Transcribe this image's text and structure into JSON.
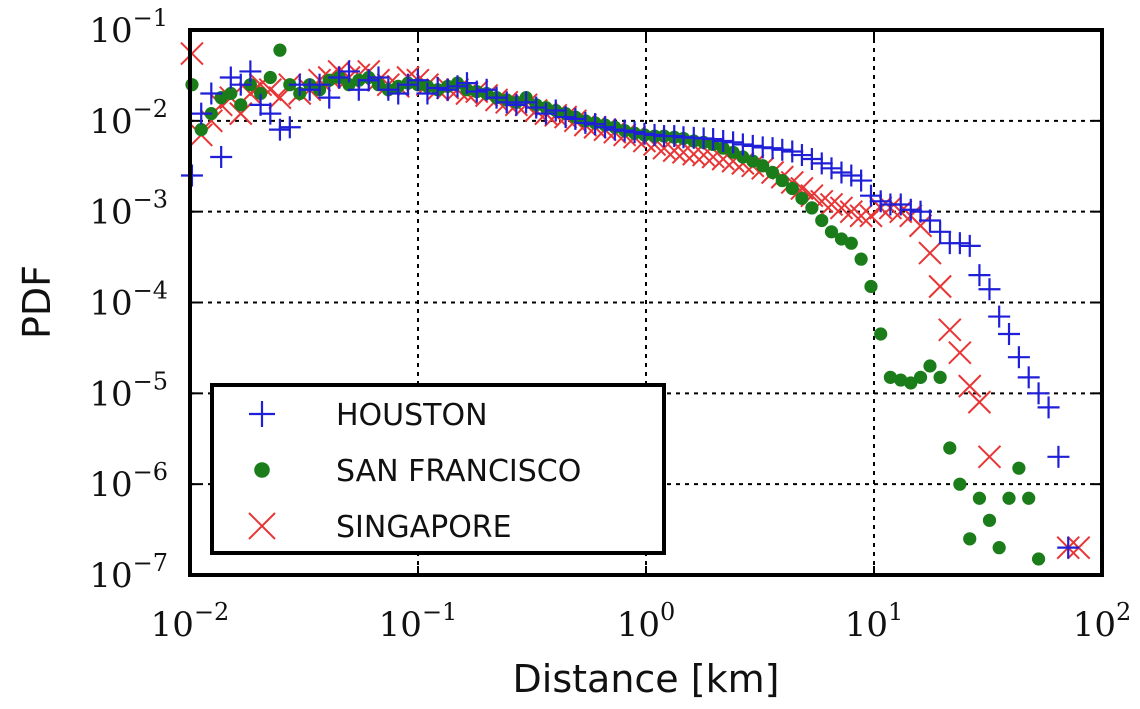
{
  "chart_data": {
    "type": "scatter",
    "title": "",
    "xlabel": "Distance [km]",
    "ylabel": "PDF",
    "x_scale": "log",
    "y_scale": "log",
    "xlim": [
      0.01,
      100
    ],
    "ylim": [
      1e-07,
      0.1
    ],
    "grid": true,
    "legend_position": "lower-left",
    "x_ticks": [
      {
        "base": "10",
        "exp": "−2"
      },
      {
        "base": "10",
        "exp": "−1"
      },
      {
        "base": "10",
        "exp": "0"
      },
      {
        "base": "10",
        "exp": "1"
      },
      {
        "base": "10",
        "exp": "2"
      }
    ],
    "y_ticks": [
      {
        "base": "10",
        "exp": "−1"
      },
      {
        "base": "10",
        "exp": "−2"
      },
      {
        "base": "10",
        "exp": "−3"
      },
      {
        "base": "10",
        "exp": "−4"
      },
      {
        "base": "10",
        "exp": "−5"
      },
      {
        "base": "10",
        "exp": "−6"
      },
      {
        "base": "10",
        "exp": "−7"
      }
    ],
    "series": [
      {
        "name": "HOUSTON",
        "marker": "plus",
        "color": "#1f1fd8",
        "x": [
          0.0102,
          0.0112,
          0.0124,
          0.0137,
          0.0151,
          0.0167,
          0.0184,
          0.0204,
          0.0225,
          0.0248,
          0.0274,
          0.0303,
          0.0335,
          0.037,
          0.0408,
          0.0451,
          0.0498,
          0.055,
          0.0608,
          0.0671,
          0.0741,
          0.0819,
          0.0904,
          0.0999,
          0.11,
          0.122,
          0.135,
          0.149,
          0.164,
          0.181,
          0.2,
          0.221,
          0.245,
          0.27,
          0.298,
          0.33,
          0.364,
          0.402,
          0.444,
          0.49,
          0.542,
          0.598,
          0.661,
          0.73,
          0.806,
          0.891,
          0.984,
          1.09,
          1.2,
          1.33,
          1.46,
          1.62,
          1.79,
          1.97,
          2.18,
          2.41,
          2.66,
          2.94,
          3.25,
          3.59,
          3.96,
          4.38,
          4.83,
          5.34,
          5.9,
          6.51,
          7.2,
          7.95,
          8.78,
          9.7,
          10.7,
          11.8,
          13.1,
          14.5,
          16.0,
          17.6,
          19.5,
          21.5,
          23.8,
          26.3,
          29.0,
          32.1,
          35.4,
          39.1,
          43.2,
          47.7,
          52.7,
          58.3,
          64.4,
          71.1
        ],
        "y": [
          0.0025,
          0.012,
          0.02,
          0.004,
          0.03,
          0.025,
          0.035,
          0.015,
          0.012,
          0.008,
          0.0085,
          0.025,
          0.022,
          0.025,
          0.018,
          0.03,
          0.035,
          0.022,
          0.028,
          0.03,
          0.022,
          0.02,
          0.025,
          0.028,
          0.02,
          0.023,
          0.022,
          0.024,
          0.026,
          0.021,
          0.022,
          0.018,
          0.016,
          0.015,
          0.016,
          0.014,
          0.012,
          0.013,
          0.011,
          0.0105,
          0.0095,
          0.0092,
          0.0085,
          0.008,
          0.0078,
          0.0075,
          0.0072,
          0.007,
          0.0068,
          0.0068,
          0.0066,
          0.0065,
          0.0064,
          0.0063,
          0.006,
          0.0058,
          0.0055,
          0.0053,
          0.0051,
          0.005,
          0.0048,
          0.0046,
          0.0042,
          0.0038,
          0.0034,
          0.003,
          0.0027,
          0.0025,
          0.0022,
          0.0015,
          0.0013,
          0.0012,
          0.0012,
          0.00105,
          0.001,
          0.0008,
          0.0006,
          0.00045,
          0.00045,
          0.00042,
          0.0002,
          0.00014,
          7e-05,
          4.5e-05,
          2.5e-05,
          1.5e-05,
          1e-05,
          7e-06,
          2e-06,
          2e-07
        ]
      },
      {
        "name": "SAN FRANCISCO",
        "marker": "circle",
        "color": "#1a7d1a",
        "x": [
          0.0102,
          0.0112,
          0.0124,
          0.0137,
          0.0151,
          0.0167,
          0.0184,
          0.0204,
          0.0225,
          0.0248,
          0.0274,
          0.0303,
          0.0335,
          0.037,
          0.0408,
          0.0451,
          0.0498,
          0.055,
          0.0608,
          0.0671,
          0.0741,
          0.0819,
          0.0904,
          0.0999,
          0.11,
          0.122,
          0.135,
          0.149,
          0.164,
          0.181,
          0.2,
          0.221,
          0.245,
          0.27,
          0.298,
          0.33,
          0.364,
          0.402,
          0.444,
          0.49,
          0.542,
          0.598,
          0.661,
          0.73,
          0.806,
          0.891,
          0.984,
          1.09,
          1.2,
          1.33,
          1.46,
          1.62,
          1.79,
          1.97,
          2.18,
          2.41,
          2.66,
          2.94,
          3.25,
          3.59,
          3.96,
          4.38,
          4.83,
          5.34,
          5.9,
          6.51,
          7.2,
          7.95,
          8.78,
          9.7,
          10.7,
          11.8,
          13.1,
          14.5,
          16.0,
          17.6,
          19.5,
          21.5,
          23.8,
          26.3,
          29.0,
          32.1,
          35.4,
          39.1,
          43.2,
          47.7,
          52.7
        ],
        "y": [
          0.025,
          0.008,
          0.012,
          0.018,
          0.02,
          0.015,
          0.025,
          0.02,
          0.03,
          0.06,
          0.025,
          0.02,
          0.025,
          0.022,
          0.028,
          0.03,
          0.025,
          0.028,
          0.03,
          0.025,
          0.022,
          0.024,
          0.026,
          0.025,
          0.024,
          0.022,
          0.024,
          0.026,
          0.022,
          0.021,
          0.02,
          0.018,
          0.017,
          0.016,
          0.018,
          0.015,
          0.014,
          0.013,
          0.012,
          0.011,
          0.01,
          0.0095,
          0.009,
          0.0085,
          0.0078,
          0.0073,
          0.007,
          0.0068,
          0.0068,
          0.0066,
          0.0064,
          0.006,
          0.0058,
          0.0055,
          0.005,
          0.0045,
          0.004,
          0.0036,
          0.0032,
          0.0027,
          0.0022,
          0.0018,
          0.0014,
          0.0011,
          0.0008,
          0.0006,
          0.0005,
          0.00045,
          0.0003,
          0.00015,
          4.5e-05,
          1.5e-05,
          1.4e-05,
          1.3e-05,
          1.5e-05,
          2e-05,
          1.5e-05,
          2.5e-06,
          1e-06,
          2.5e-07,
          7e-07,
          4e-07,
          2e-07,
          7e-07,
          1.5e-06,
          7e-07,
          1.5e-07
        ]
      },
      {
        "name": "SINGAPORE",
        "marker": "cross",
        "color": "#e83535",
        "x": [
          0.0102,
          0.0112,
          0.0124,
          0.0137,
          0.0151,
          0.0167,
          0.0184,
          0.0204,
          0.0225,
          0.0248,
          0.0274,
          0.0303,
          0.0335,
          0.037,
          0.0408,
          0.0451,
          0.0498,
          0.055,
          0.0608,
          0.0671,
          0.0741,
          0.0819,
          0.0904,
          0.0999,
          0.11,
          0.122,
          0.135,
          0.149,
          0.164,
          0.181,
          0.2,
          0.221,
          0.245,
          0.27,
          0.298,
          0.33,
          0.364,
          0.402,
          0.444,
          0.49,
          0.542,
          0.598,
          0.661,
          0.73,
          0.806,
          0.891,
          0.984,
          1.09,
          1.2,
          1.33,
          1.46,
          1.62,
          1.79,
          1.97,
          2.18,
          2.41,
          2.66,
          2.94,
          3.25,
          3.59,
          3.96,
          4.38,
          4.83,
          5.34,
          5.9,
          6.51,
          7.2,
          7.95,
          8.78,
          9.7,
          10.7,
          11.8,
          13.1,
          14.5,
          16.0,
          17.6,
          19.5,
          21.5,
          23.8,
          26.3,
          29.0,
          32.1,
          71.1,
          79.0
        ],
        "y": [
          0.055,
          0.007,
          0.01,
          0.015,
          0.018,
          0.012,
          0.02,
          0.025,
          0.022,
          0.018,
          0.025,
          0.02,
          0.022,
          0.028,
          0.03,
          0.035,
          0.03,
          0.032,
          0.035,
          0.028,
          0.025,
          0.024,
          0.03,
          0.028,
          0.025,
          0.022,
          0.023,
          0.022,
          0.02,
          0.021,
          0.019,
          0.017,
          0.016,
          0.015,
          0.015,
          0.013,
          0.012,
          0.0115,
          0.011,
          0.01,
          0.009,
          0.0085,
          0.008,
          0.0075,
          0.007,
          0.0066,
          0.006,
          0.0055,
          0.005,
          0.0047,
          0.0045,
          0.0043,
          0.0042,
          0.004,
          0.0038,
          0.0036,
          0.0034,
          0.0032,
          0.003,
          0.0027,
          0.0024,
          0.0021,
          0.0018,
          0.0015,
          0.0013,
          0.0012,
          0.0011,
          0.001,
          0.0009,
          0.0009,
          0.0011,
          0.0011,
          0.001,
          0.0009,
          0.0007,
          0.00035,
          0.00015,
          5e-05,
          2.8e-05,
          1.2e-05,
          8e-06,
          2e-06,
          2e-07,
          2e-07
        ]
      }
    ]
  }
}
